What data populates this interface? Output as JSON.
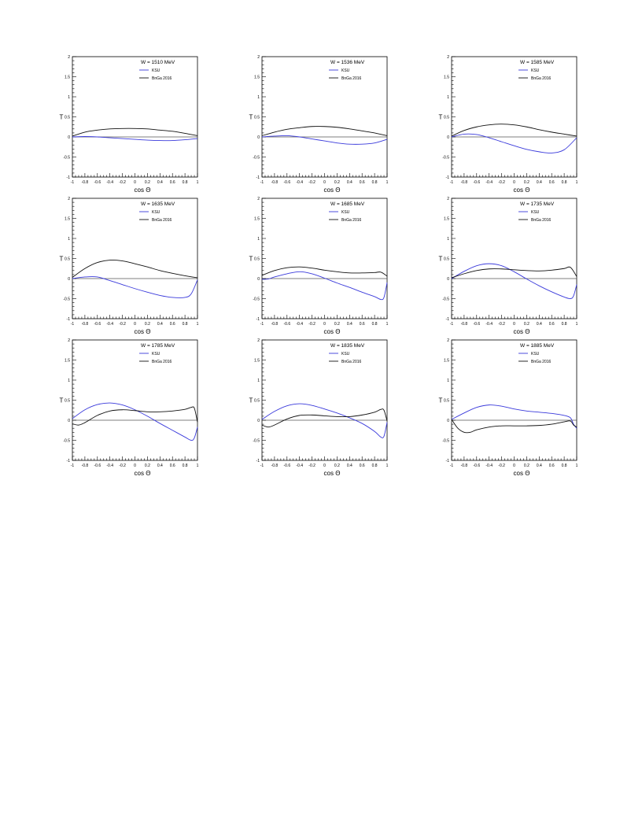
{
  "colors": {
    "ksu": "#3a3adb",
    "bnga": "#111111",
    "axis": "#000000",
    "zero_line": "#555555"
  },
  "chart_data": [
    {
      "type": "line",
      "title": "W = 1510 MeV",
      "xlabel": "cos Θ",
      "ylabel": "T",
      "xlim": [
        -1,
        1
      ],
      "ylim": [
        -1,
        2
      ],
      "x_ticks": [
        "-1",
        "-0.8",
        "-0.6",
        "-0.4",
        "-0.2",
        "0",
        "0.2",
        "0.4",
        "0.6",
        "0.8",
        "1"
      ],
      "y_ticks": [
        "-1",
        "-0.5",
        "0",
        "0.5",
        "1",
        "1.5",
        "2"
      ],
      "legend": [
        "KSU",
        "BnGa 2016"
      ],
      "legend_position": "top-right",
      "series": [
        {
          "name": "KSU",
          "color": "ksu",
          "x": [
            -1,
            -0.8,
            -0.6,
            -0.4,
            -0.2,
            0,
            0.2,
            0.4,
            0.6,
            0.8,
            1
          ],
          "y": [
            0,
            0.01,
            0.0,
            -0.02,
            -0.04,
            -0.06,
            -0.08,
            -0.09,
            -0.09,
            -0.07,
            -0.04
          ]
        },
        {
          "name": "BnGa 2016",
          "color": "bnga",
          "x": [
            -1,
            -0.8,
            -0.6,
            -0.4,
            -0.2,
            0,
            0.2,
            0.4,
            0.6,
            0.8,
            1
          ],
          "y": [
            0.02,
            0.12,
            0.17,
            0.2,
            0.21,
            0.21,
            0.2,
            0.17,
            0.14,
            0.09,
            0.03
          ]
        }
      ]
    },
    {
      "type": "line",
      "title": "W = 1536 MeV",
      "xlabel": "cos Θ",
      "ylabel": "T",
      "xlim": [
        -1,
        1
      ],
      "ylim": [
        -1,
        2
      ],
      "x_ticks": [
        "-1",
        "-0.8",
        "-0.6",
        "-0.4",
        "-0.2",
        "0",
        "0.2",
        "0.4",
        "0.6",
        "0.8",
        "1"
      ],
      "y_ticks": [
        "-1",
        "-0.5",
        "0",
        "0.5",
        "1",
        "1.5",
        "2"
      ],
      "legend": [
        "KSU",
        "BnGa 2016"
      ],
      "legend_position": "top-right",
      "series": [
        {
          "name": "KSU",
          "color": "ksu",
          "x": [
            -1,
            -0.8,
            -0.6,
            -0.4,
            -0.2,
            0,
            0.2,
            0.4,
            0.6,
            0.8,
            1
          ],
          "y": [
            0,
            0.02,
            0.03,
            0.0,
            -0.05,
            -0.1,
            -0.15,
            -0.18,
            -0.18,
            -0.15,
            -0.06
          ]
        },
        {
          "name": "BnGa 2016",
          "color": "bnga",
          "x": [
            -1,
            -0.8,
            -0.6,
            -0.4,
            -0.2,
            0,
            0.2,
            0.4,
            0.6,
            0.8,
            1
          ],
          "y": [
            0.03,
            0.12,
            0.19,
            0.23,
            0.26,
            0.26,
            0.24,
            0.2,
            0.15,
            0.1,
            0.03
          ]
        }
      ]
    },
    {
      "type": "line",
      "title": "W = 1585 MeV",
      "xlabel": "cos Θ",
      "ylabel": "T",
      "xlim": [
        -1,
        1
      ],
      "ylim": [
        -1,
        2
      ],
      "x_ticks": [
        "-1",
        "-0.8",
        "-0.6",
        "-0.4",
        "-0.2",
        "0",
        "0.2",
        "0.4",
        "0.6",
        "0.8",
        "1"
      ],
      "y_ticks": [
        "-1",
        "-0.5",
        "0",
        "0.5",
        "1",
        "1.5",
        "2"
      ],
      "legend": [
        "KSU",
        "BnGa 2016"
      ],
      "legend_position": "top-right",
      "series": [
        {
          "name": "KSU",
          "color": "ksu",
          "x": [
            -1,
            -0.8,
            -0.6,
            -0.4,
            -0.2,
            0,
            0.2,
            0.4,
            0.6,
            0.8,
            1
          ],
          "y": [
            0,
            0.07,
            0.06,
            -0.02,
            -0.12,
            -0.22,
            -0.31,
            -0.37,
            -0.4,
            -0.32,
            -0.02
          ]
        },
        {
          "name": "BnGa 2016",
          "color": "bnga",
          "x": [
            -1,
            -0.8,
            -0.6,
            -0.4,
            -0.2,
            0,
            0.2,
            0.4,
            0.6,
            0.8,
            1
          ],
          "y": [
            0.02,
            0.16,
            0.25,
            0.3,
            0.32,
            0.3,
            0.25,
            0.18,
            0.12,
            0.07,
            0.02
          ]
        }
      ]
    },
    {
      "type": "line",
      "title": "W = 1635 MeV",
      "xlabel": "cos Θ",
      "ylabel": "T",
      "xlim": [
        -1,
        1
      ],
      "ylim": [
        -1,
        2
      ],
      "x_ticks": [
        "-1",
        "-0.8",
        "-0.6",
        "-0.4",
        "-0.2",
        "0",
        "0.2",
        "0.4",
        "0.6",
        "0.8",
        "1"
      ],
      "y_ticks": [
        "-1",
        "-0.5",
        "0",
        "0.5",
        "1",
        "1.5",
        "2"
      ],
      "legend": [
        "KSU",
        "BnGa 2016"
      ],
      "legend_position": "top-right",
      "series": [
        {
          "name": "KSU",
          "color": "ksu",
          "x": [
            -1,
            -0.8,
            -0.6,
            -0.4,
            -0.2,
            0,
            0.2,
            0.4,
            0.6,
            0.8,
            0.9,
            1
          ],
          "y": [
            0,
            0.04,
            0.04,
            -0.05,
            -0.15,
            -0.25,
            -0.34,
            -0.42,
            -0.47,
            -0.47,
            -0.38,
            -0.03
          ]
        },
        {
          "name": "BnGa 2016",
          "color": "bnga",
          "x": [
            -1,
            -0.8,
            -0.6,
            -0.4,
            -0.2,
            0,
            0.2,
            0.4,
            0.6,
            0.8,
            1
          ],
          "y": [
            0.03,
            0.25,
            0.4,
            0.46,
            0.44,
            0.37,
            0.29,
            0.2,
            0.13,
            0.07,
            0.02
          ]
        }
      ]
    },
    {
      "type": "line",
      "title": "W = 1685 MeV",
      "xlabel": "cos Θ",
      "ylabel": "T",
      "xlim": [
        -1,
        1
      ],
      "ylim": [
        -1,
        2
      ],
      "x_ticks": [
        "-1",
        "-0.8",
        "-0.6",
        "-0.4",
        "-0.2",
        "0",
        "0.2",
        "0.4",
        "0.6",
        "0.8",
        "1"
      ],
      "y_ticks": [
        "-1",
        "-0.5",
        "0",
        "0.5",
        "1",
        "1.5",
        "2"
      ],
      "legend": [
        "KSU",
        "BnGa 2016"
      ],
      "legend_position": "top-right",
      "series": [
        {
          "name": "KSU",
          "color": "ksu",
          "x": [
            -1,
            -0.9,
            -0.8,
            -0.6,
            -0.4,
            -0.2,
            0,
            0.2,
            0.4,
            0.6,
            0.8,
            0.9,
            0.95,
            1
          ],
          "y": [
            -0.02,
            -0.01,
            0.04,
            0.12,
            0.17,
            0.12,
            0.01,
            -0.11,
            -0.22,
            -0.34,
            -0.45,
            -0.52,
            -0.47,
            -0.1
          ]
        },
        {
          "name": "BnGa 2016",
          "color": "bnga",
          "x": [
            -1,
            -0.8,
            -0.6,
            -0.4,
            -0.2,
            0,
            0.2,
            0.4,
            0.6,
            0.8,
            0.9,
            1
          ],
          "y": [
            0.08,
            0.2,
            0.27,
            0.29,
            0.26,
            0.21,
            0.17,
            0.14,
            0.14,
            0.15,
            0.16,
            0.06
          ]
        }
      ]
    },
    {
      "type": "line",
      "title": "W = 1735 MeV",
      "xlabel": "cos Θ",
      "ylabel": "T",
      "xlim": [
        -1,
        1
      ],
      "ylim": [
        -1,
        2
      ],
      "x_ticks": [
        "-1",
        "-0.8",
        "-0.6",
        "-0.4",
        "-0.2",
        "0",
        "0.2",
        "0.4",
        "0.6",
        "0.8",
        "1"
      ],
      "y_ticks": [
        "-1",
        "-0.5",
        "0",
        "0.5",
        "1",
        "1.5",
        "2"
      ],
      "legend": [
        "KSU",
        "BnGa 2016"
      ],
      "legend_position": "top-right",
      "series": [
        {
          "name": "KSU",
          "color": "ksu",
          "x": [
            -1,
            -0.8,
            -0.6,
            -0.4,
            -0.2,
            0,
            0.2,
            0.4,
            0.6,
            0.8,
            0.9,
            0.95,
            1
          ],
          "y": [
            0,
            0.18,
            0.32,
            0.37,
            0.32,
            0.17,
            -0.01,
            -0.18,
            -0.33,
            -0.46,
            -0.5,
            -0.43,
            -0.15
          ]
        },
        {
          "name": "BnGa 2016",
          "color": "bnga",
          "x": [
            -1,
            -0.8,
            -0.6,
            -0.4,
            -0.2,
            0,
            0.2,
            0.4,
            0.6,
            0.8,
            0.9,
            1
          ],
          "y": [
            0.02,
            0.12,
            0.2,
            0.24,
            0.24,
            0.22,
            0.2,
            0.19,
            0.21,
            0.25,
            0.28,
            0.05
          ]
        }
      ]
    },
    {
      "type": "line",
      "title": "W = 1785 MeV",
      "xlabel": "cos Θ",
      "ylabel": "T",
      "xlim": [
        -1,
        1
      ],
      "ylim": [
        -1,
        2
      ],
      "x_ticks": [
        "-1",
        "-0.8",
        "-0.6",
        "-0.4",
        "-0.2",
        "0",
        "0.2",
        "0.4",
        "0.6",
        "0.8",
        "1"
      ],
      "y_ticks": [
        "-1",
        "-0.5",
        "0",
        "0.5",
        "1",
        "1.5",
        "2"
      ],
      "legend": [
        "KSU",
        "BnGa 2016"
      ],
      "legend_position": "top-right",
      "series": [
        {
          "name": "KSU",
          "color": "ksu",
          "x": [
            -1,
            -0.8,
            -0.6,
            -0.4,
            -0.2,
            0,
            0.2,
            0.4,
            0.6,
            0.8,
            0.9,
            0.95,
            1
          ],
          "y": [
            0.04,
            0.26,
            0.39,
            0.43,
            0.38,
            0.26,
            0.1,
            -0.08,
            -0.25,
            -0.42,
            -0.5,
            -0.44,
            -0.17
          ]
        },
        {
          "name": "BnGa 2016",
          "color": "bnga",
          "x": [
            -1,
            -0.9,
            -0.8,
            -0.6,
            -0.4,
            -0.2,
            0,
            0.2,
            0.4,
            0.6,
            0.8,
            0.9,
            0.95,
            1
          ],
          "y": [
            -0.09,
            -0.12,
            -0.06,
            0.12,
            0.23,
            0.26,
            0.24,
            0.21,
            0.21,
            0.23,
            0.27,
            0.32,
            0.3,
            -0.05
          ]
        }
      ]
    },
    {
      "type": "line",
      "title": "W = 1835 MeV",
      "xlabel": "cos Θ",
      "ylabel": "T",
      "xlim": [
        -1,
        1
      ],
      "ylim": [
        -1,
        2
      ],
      "x_ticks": [
        "-1",
        "-0.8",
        "-0.6",
        "-0.4",
        "-0.2",
        "0",
        "0.2",
        "0.4",
        "0.6",
        "0.8",
        "1"
      ],
      "y_ticks": [
        "-1",
        "-0.5",
        "0",
        "0.5",
        "1",
        "1.5",
        "2"
      ],
      "legend": [
        "KSU",
        "BnGa 2016"
      ],
      "legend_position": "top-right",
      "series": [
        {
          "name": "KSU",
          "color": "ksu",
          "x": [
            -1,
            -0.8,
            -0.6,
            -0.4,
            -0.2,
            0,
            0.2,
            0.4,
            0.6,
            0.8,
            0.9,
            0.95,
            1
          ],
          "y": [
            0.02,
            0.22,
            0.36,
            0.41,
            0.37,
            0.28,
            0.18,
            0.06,
            -0.08,
            -0.28,
            -0.42,
            -0.4,
            -0.05
          ]
        },
        {
          "name": "BnGa 2016",
          "color": "bnga",
          "x": [
            -1,
            -0.9,
            -0.8,
            -0.6,
            -0.4,
            -0.2,
            0,
            0.2,
            0.4,
            0.6,
            0.8,
            0.9,
            0.95,
            1
          ],
          "y": [
            -0.12,
            -0.17,
            -0.12,
            0.03,
            0.12,
            0.13,
            0.11,
            0.09,
            0.09,
            0.13,
            0.2,
            0.27,
            0.25,
            -0.02
          ]
        }
      ]
    },
    {
      "type": "line",
      "title": "W = 1885 MeV",
      "xlabel": "cos Θ",
      "ylabel": "T",
      "xlim": [
        -1,
        1
      ],
      "ylim": [
        -1,
        2
      ],
      "x_ticks": [
        "-1",
        "-0.8",
        "-0.6",
        "-0.4",
        "-0.2",
        "0",
        "0.2",
        "0.4",
        "0.6",
        "0.8",
        "1"
      ],
      "y_ticks": [
        "-1",
        "-0.5",
        "0",
        "0.5",
        "1",
        "1.5",
        "2"
      ],
      "legend": [
        "KSU",
        "BnGa 2016"
      ],
      "legend_position": "top-right",
      "series": [
        {
          "name": "KSU",
          "color": "ksu",
          "x": [
            -1,
            -0.8,
            -0.6,
            -0.4,
            -0.2,
            0,
            0.2,
            0.4,
            0.6,
            0.8,
            0.9,
            0.95,
            1
          ],
          "y": [
            0.02,
            0.18,
            0.32,
            0.38,
            0.35,
            0.28,
            0.23,
            0.2,
            0.17,
            0.12,
            0.06,
            -0.1,
            -0.2
          ]
        },
        {
          "name": "BnGa 2016",
          "color": "bnga",
          "x": [
            -1,
            -0.9,
            -0.8,
            -0.7,
            -0.6,
            -0.4,
            -0.2,
            0,
            0.2,
            0.4,
            0.6,
            0.8,
            0.9,
            0.95,
            1
          ],
          "y": [
            0.02,
            -0.2,
            -0.3,
            -0.3,
            -0.24,
            -0.17,
            -0.14,
            -0.14,
            -0.14,
            -0.13,
            -0.1,
            -0.04,
            -0.02,
            -0.12,
            -0.17
          ]
        }
      ]
    }
  ]
}
